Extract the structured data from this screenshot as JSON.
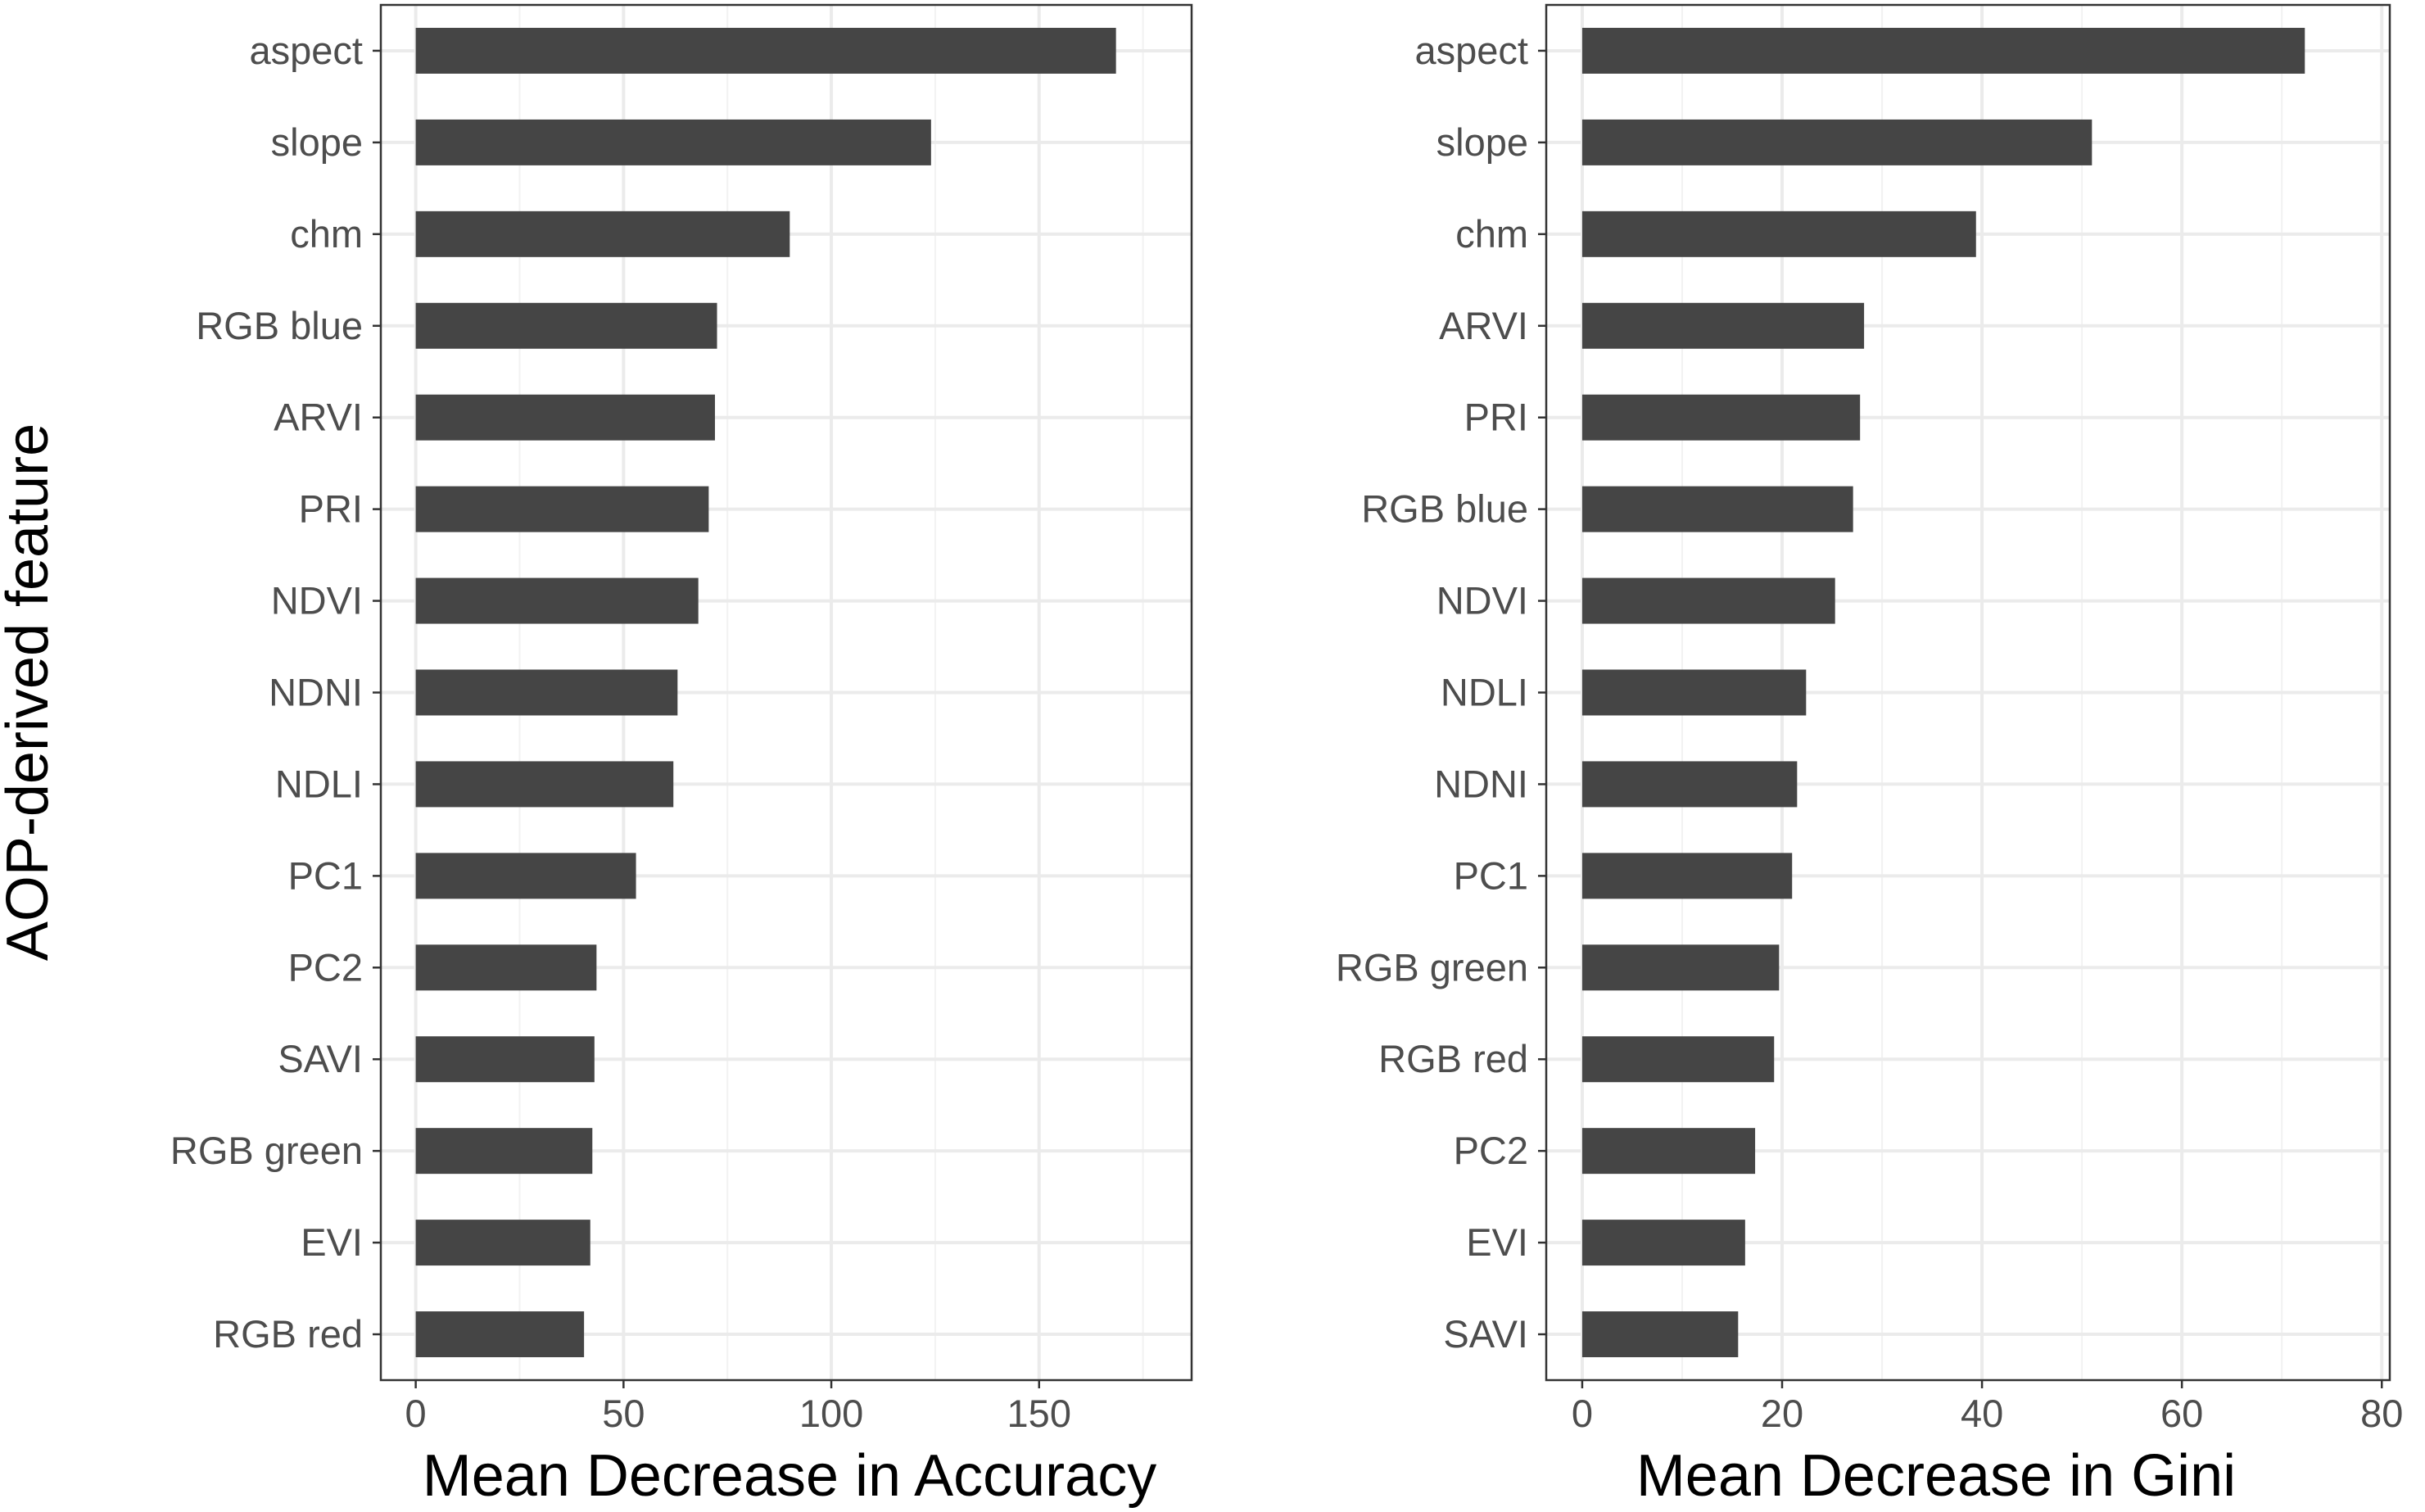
{
  "chart_data": [
    {
      "type": "bar",
      "orientation": "horizontal",
      "xlabel": "Mean Decrease in Accuracy",
      "ylabel": "AOP-derived feature",
      "xlim": [
        -8.4,
        186.7
      ],
      "xticks": [
        0,
        50,
        100,
        150
      ],
      "xtick_labels": [
        "0",
        "50",
        "100",
        "150"
      ],
      "grid": true,
      "bar_color": "#454545",
      "categories": [
        "aspect",
        "slope",
        "chm",
        "RGB blue",
        "ARVI",
        "PRI",
        "NDVI",
        "NDNI",
        "NDLI",
        "PC1",
        "PC2",
        "SAVI",
        "RGB green",
        "EVI",
        "RGB red"
      ],
      "values": [
        168.5,
        124,
        90,
        72.5,
        72,
        70.5,
        68,
        63,
        62,
        53,
        43.5,
        43,
        42.5,
        42,
        40.5
      ]
    },
    {
      "type": "bar",
      "orientation": "horizontal",
      "xlabel": "Mean Decrease in Gini",
      "ylabel": "",
      "xlim": [
        -3.6,
        80.8
      ],
      "xticks": [
        0,
        20,
        40,
        60,
        80
      ],
      "xtick_labels": [
        "0",
        "20",
        "40",
        "60",
        "80"
      ],
      "grid": true,
      "bar_color": "#454545",
      "categories": [
        "aspect",
        "slope",
        "chm",
        "ARVI",
        "PRI",
        "RGB blue",
        "NDVI",
        "NDLI",
        "NDNI",
        "PC1",
        "RGB green",
        "RGB red",
        "PC2",
        "EVI",
        "SAVI"
      ],
      "values": [
        72.3,
        51,
        39.4,
        28.2,
        27.8,
        27.1,
        25.3,
        22.4,
        21.5,
        21,
        19.7,
        19.2,
        17.3,
        16.3,
        15.6
      ]
    }
  ]
}
